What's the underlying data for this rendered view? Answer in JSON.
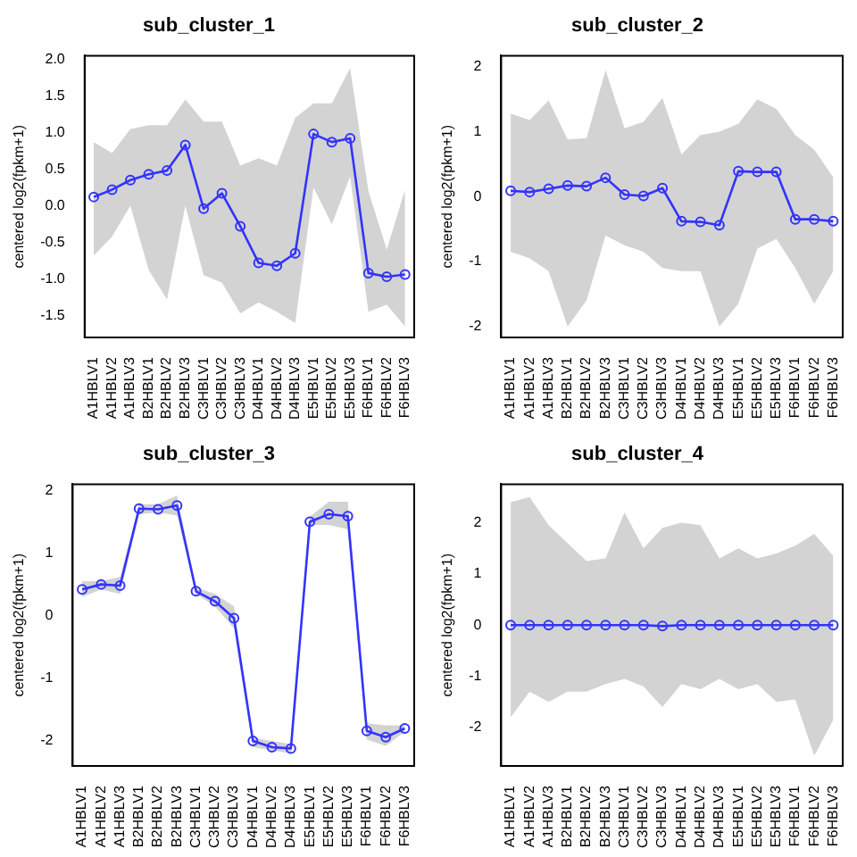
{
  "chart_data": [
    {
      "type": "line",
      "title": "sub_cluster_1",
      "ylabel": "centered log2(fpkm+1)",
      "categories": [
        "A1HBLV1",
        "A1HBLV2",
        "A1HBLV3",
        "B2HBLV1",
        "B2HBLV2",
        "B2HBLV3",
        "C3HBLV1",
        "C3HBLV2",
        "C3HBLV3",
        "D4HBLV1",
        "D4HBLV2",
        "D4HBLV3",
        "E5HBLV1",
        "E5HBLV2",
        "E5HBLV3",
        "F6HBLV1",
        "F6HBLV2",
        "F6HBLV3"
      ],
      "ylim": [
        -1.8,
        2.05
      ],
      "yticks": [
        {
          "value": -1.5,
          "label": "-1.5"
        },
        {
          "value": -1,
          "label": "-1.0"
        },
        {
          "value": -0.5,
          "label": "-0.5"
        },
        {
          "value": 0,
          "label": "0.0"
        },
        {
          "value": 0.5,
          "label": "0.5"
        },
        {
          "value": 1,
          "label": "1.0"
        },
        {
          "value": 1.5,
          "label": "1.5"
        },
        {
          "value": 2,
          "label": "2.0"
        }
      ],
      "grid": false,
      "legend": false,
      "marker": "circle",
      "series": [
        {
          "color": "#3333ff",
          "values": [
            0.12,
            0.22,
            0.35,
            0.43,
            0.48,
            0.83,
            -0.04,
            0.17,
            -0.28,
            -0.78,
            -0.82,
            -0.65,
            0.98,
            0.87,
            0.92,
            -0.92,
            -0.97,
            -0.94
          ],
          "lower": [
            -0.68,
            -0.42,
            0.0,
            -0.88,
            -1.28,
            0.0,
            -0.95,
            -1.05,
            -1.47,
            -1.32,
            -1.45,
            -1.6,
            0.25,
            -0.25,
            0.4,
            -1.45,
            -1.35,
            -1.65
          ],
          "upper": [
            0.87,
            0.72,
            1.05,
            1.1,
            1.1,
            1.45,
            1.15,
            1.15,
            0.55,
            0.65,
            0.55,
            1.2,
            1.4,
            1.4,
            1.88,
            0.2,
            -0.6,
            0.22
          ]
        }
      ]
    },
    {
      "type": "line",
      "title": "sub_cluster_2",
      "ylabel": "centered log2(fpkm+1)",
      "categories": [
        "A1HBLV1",
        "A1HBLV2",
        "A1HBLV3",
        "B2HBLV1",
        "B2HBLV2",
        "B2HBLV3",
        "C3HBLV1",
        "C3HBLV2",
        "C3HBLV3",
        "D4HBLV1",
        "D4HBLV2",
        "D4HBLV3",
        "E5HBLV1",
        "E5HBLV2",
        "E5HBLV3",
        "F6HBLV1",
        "F6HBLV2",
        "F6HBLV3"
      ],
      "ylim": [
        -2.17,
        2.17
      ],
      "yticks": [
        -2,
        -1,
        0,
        1,
        2
      ],
      "grid": false,
      "legend": false,
      "marker": "circle",
      "series": [
        {
          "color": "#3333ff",
          "values": [
            0.09,
            0.07,
            0.12,
            0.17,
            0.16,
            0.29,
            0.03,
            0.01,
            0.13,
            -0.38,
            -0.39,
            -0.44,
            0.39,
            0.38,
            0.38,
            -0.35,
            -0.35,
            -0.38
          ],
          "lower": [
            -0.85,
            -0.95,
            -1.15,
            -2.0,
            -1.6,
            -0.6,
            -0.75,
            -0.85,
            -1.1,
            -1.15,
            -1.15,
            -2.0,
            -1.65,
            -0.8,
            -0.65,
            -1.1,
            -1.65,
            -1.15
          ],
          "upper": [
            1.28,
            1.18,
            1.48,
            0.88,
            0.9,
            1.95,
            1.05,
            1.15,
            1.52,
            0.65,
            0.95,
            1.0,
            1.12,
            1.5,
            1.35,
            0.95,
            0.72,
            0.3
          ]
        }
      ]
    },
    {
      "type": "line",
      "title": "sub_cluster_3",
      "ylabel": "centered log2(fpkm+1)",
      "categories": [
        "A1HBLV1",
        "A1HBLV2",
        "A1HBLV3",
        "B2HBLV1",
        "B2HBLV2",
        "B2HBLV3",
        "C3HBLV1",
        "C3HBLV2",
        "C3HBLV3",
        "D4HBLV1",
        "D4HBLV2",
        "D4HBLV3",
        "E5HBLV1",
        "E5HBLV2",
        "E5HBLV3",
        "F6HBLV1",
        "F6HBLV2",
        "F6HBLV3"
      ],
      "ylim": [
        -2.4,
        2.1
      ],
      "yticks": [
        -2,
        -1,
        0,
        1,
        2
      ],
      "grid": false,
      "legend": false,
      "marker": "circle",
      "series": [
        {
          "color": "#3333ff",
          "values": [
            0.42,
            0.5,
            0.48,
            1.71,
            1.7,
            1.76,
            0.39,
            0.23,
            -0.04,
            -2.0,
            -2.1,
            -2.12,
            1.5,
            1.62,
            1.59,
            -1.84,
            -1.94,
            -1.8
          ],
          "lower": [
            0.3,
            0.42,
            0.35,
            1.62,
            1.65,
            1.6,
            0.35,
            0.15,
            -0.2,
            -2.1,
            -2.15,
            -2.2,
            1.45,
            1.45,
            1.38,
            -1.98,
            -2.08,
            -1.85
          ],
          "upper": [
            0.55,
            0.55,
            0.62,
            1.78,
            1.78,
            1.92,
            0.45,
            0.35,
            0.15,
            -1.95,
            -2.0,
            -2.05,
            1.58,
            1.82,
            1.82,
            -1.72,
            -1.75,
            -1.75
          ]
        }
      ]
    },
    {
      "type": "line",
      "title": "sub_cluster_4",
      "ylabel": "centered log2(fpkm+1)",
      "categories": [
        "A1HBLV1",
        "A1HBLV2",
        "A1HBLV3",
        "B2HBLV1",
        "B2HBLV2",
        "B2HBLV3",
        "C3HBLV1",
        "C3HBLV2",
        "C3HBLV3",
        "D4HBLV1",
        "D4HBLV2",
        "D4HBLV3",
        "E5HBLV1",
        "E5HBLV2",
        "E5HBLV3",
        "F6HBLV1",
        "F6HBLV2",
        "F6HBLV3"
      ],
      "ylim": [
        -2.75,
        2.75
      ],
      "yticks": [
        -2,
        -1,
        0,
        1,
        2
      ],
      "grid": false,
      "legend": false,
      "marker": "circle",
      "series": [
        {
          "color": "#3333ff",
          "values": [
            0,
            0,
            0,
            0,
            0,
            0,
            0,
            0,
            -0.02,
            0,
            0,
            0,
            0,
            0,
            0,
            0,
            0,
            0
          ],
          "lower": [
            -1.8,
            -1.3,
            -1.5,
            -1.3,
            -1.3,
            -1.15,
            -1.05,
            -1.2,
            -1.6,
            -1.15,
            -1.25,
            -1.05,
            -1.25,
            -1.15,
            -1.5,
            -1.45,
            -2.55,
            -1.85
          ],
          "upper": [
            2.4,
            2.5,
            1.95,
            1.6,
            1.25,
            1.3,
            2.2,
            1.5,
            1.9,
            2.0,
            1.95,
            1.3,
            1.5,
            1.3,
            1.4,
            1.55,
            1.78,
            1.35
          ]
        }
      ]
    }
  ]
}
